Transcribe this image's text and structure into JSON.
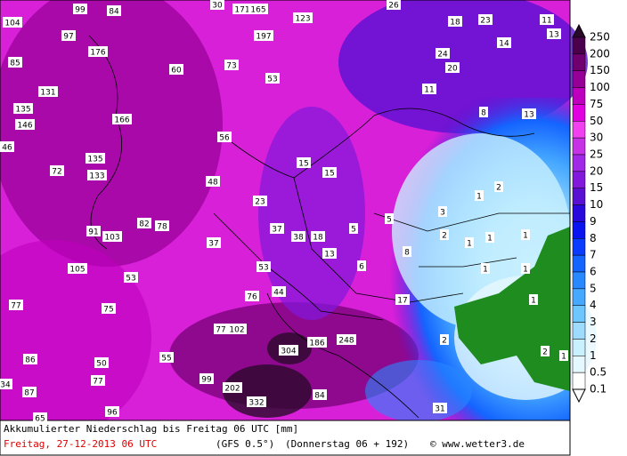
{
  "map_labels": [
    104,
    99,
    84,
    30,
    171,
    165,
    123,
    197,
    26,
    18,
    23,
    11,
    13,
    14,
    97,
    176,
    85,
    60,
    73,
    24,
    20,
    53,
    11,
    131,
    135,
    146,
    166,
    8,
    13,
    56,
    46,
    135,
    72,
    133,
    15,
    15,
    48,
    1,
    2,
    23,
    3,
    82,
    78,
    5,
    91,
    103,
    37,
    38,
    18,
    5,
    2,
    1,
    1,
    1,
    37,
    8,
    13,
    105,
    53,
    6,
    1,
    1,
    53,
    44,
    76,
    17,
    1,
    77,
    75,
    77,
    102,
    186,
    248,
    2,
    304,
    86,
    50,
    55,
    2,
    1,
    99,
    77,
    202,
    84,
    34,
    87,
    332,
    31,
    96,
    65
  ],
  "legend": [
    {
      "label": 250,
      "color": "#2a0a2a"
    },
    {
      "label": 200,
      "color": "#4a004a"
    },
    {
      "label": 150,
      "color": "#700070"
    },
    {
      "label": 100,
      "color": "#960096"
    },
    {
      "label": 75,
      "color": "#be00be"
    },
    {
      "label": 50,
      "color": "#e000e0"
    },
    {
      "label": 30,
      "color": "#f040f0"
    },
    {
      "label": 25,
      "color": "#c832e6"
    },
    {
      "label": 20,
      "color": "#a028e6"
    },
    {
      "label": 15,
      "color": "#8218dc"
    },
    {
      "label": 10,
      "color": "#5a10d2"
    },
    {
      "label": 9,
      "color": "#2808dc"
    },
    {
      "label": 8,
      "color": "#0a14f0"
    },
    {
      "label": 7,
      "color": "#0a3cff"
    },
    {
      "label": 6,
      "color": "#1464ff"
    },
    {
      "label": 5,
      "color": "#2888ff"
    },
    {
      "label": 4,
      "color": "#46a8ff"
    },
    {
      "label": 3,
      "color": "#6ec6ff"
    },
    {
      "label": 2,
      "color": "#9edcff"
    },
    {
      "label": 1,
      "color": "#c8f0ff"
    },
    {
      "label": 0.5,
      "color": "#e6f8ff"
    },
    {
      "label": 0.1,
      "color": "#ffffff"
    }
  ],
  "footer": {
    "title": "Akkumulierter Niederschlag bis Freitag 06 UTC [mm]",
    "date": "Freitag, 27-12-2013  06 UTC",
    "model": "(GFS 0.5°)",
    "run": "(Donnerstag 06 + 192)",
    "credit": "© www.wetter3.de"
  }
}
